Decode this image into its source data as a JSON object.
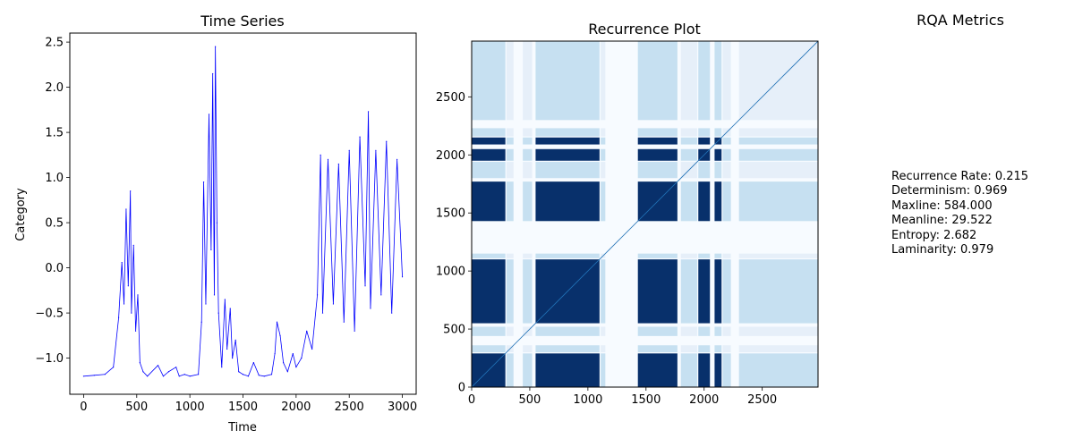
{
  "chart_data": [
    {
      "type": "line",
      "title": "Time Series",
      "xlabel": "Time",
      "ylabel": "Category",
      "xlim": [
        -130,
        3130
      ],
      "ylim": [
        -1.4,
        2.6
      ],
      "xticks": [
        0,
        500,
        1000,
        1500,
        2000,
        2500,
        3000
      ],
      "yticks": [
        -1.0,
        -0.5,
        0.0,
        0.5,
        1.0,
        1.5,
        2.0,
        2.5
      ],
      "color": "#0000ff",
      "series": [
        {
          "x": [
            0,
            100,
            200,
            280,
            330,
            360,
            380,
            400,
            420,
            440,
            450,
            470,
            490,
            510,
            530,
            560,
            600,
            700,
            750,
            800,
            870,
            900,
            950,
            1000,
            1080,
            1110,
            1130,
            1150,
            1180,
            1200,
            1215,
            1230,
            1240,
            1255,
            1270,
            1300,
            1330,
            1350,
            1380,
            1400,
            1430,
            1460,
            1500,
            1550,
            1600,
            1650,
            1700,
            1770,
            1800,
            1820,
            1850,
            1880,
            1920,
            1970,
            2000,
            2050,
            2100,
            2150,
            2200,
            2230,
            2250,
            2300,
            2350,
            2400,
            2450,
            2500,
            2550,
            2600,
            2650,
            2680,
            2700,
            2750,
            2800,
            2850,
            2900,
            2950,
            3000
          ],
          "y": [
            -1.2,
            -1.19,
            -1.18,
            -1.1,
            -0.55,
            0.06,
            -0.4,
            0.65,
            -0.2,
            0.85,
            -0.5,
            0.25,
            -0.7,
            -0.3,
            -1.05,
            -1.15,
            -1.2,
            -1.08,
            -1.2,
            -1.15,
            -1.1,
            -1.2,
            -1.18,
            -1.2,
            -1.18,
            -0.6,
            0.95,
            -0.4,
            1.7,
            0.2,
            2.15,
            -0.3,
            2.45,
            0.5,
            -0.5,
            -1.1,
            -0.35,
            -0.9,
            -0.45,
            -1.0,
            -0.8,
            -1.15,
            -1.18,
            -1.2,
            -1.05,
            -1.19,
            -1.2,
            -1.18,
            -0.95,
            -0.6,
            -0.75,
            -1.05,
            -1.15,
            -0.95,
            -1.1,
            -1.0,
            -0.7,
            -0.9,
            -0.3,
            1.25,
            -0.5,
            1.2,
            -0.4,
            1.15,
            -0.6,
            1.3,
            -0.7,
            1.45,
            -0.2,
            1.73,
            -0.45,
            1.3,
            -0.3,
            1.4,
            -0.5,
            1.2,
            -0.1
          ]
        }
      ]
    },
    {
      "type": "heatmap",
      "title": "Recurrence Plot",
      "xlim": [
        0,
        2980
      ],
      "ylim": [
        0,
        2980
      ],
      "xticks": [
        0,
        500,
        1000,
        1500,
        2000,
        2500
      ],
      "yticks": [
        0,
        500,
        1000,
        1500,
        2000,
        2500
      ],
      "colormap": "Blues",
      "background_color": "#f7fbff",
      "fill_color": "#08306b",
      "recurrent_intervals": [
        [
          0,
          290
        ],
        [
          550,
          1100
        ],
        [
          1430,
          1770
        ],
        [
          1950,
          2050
        ],
        [
          2090,
          2150
        ]
      ],
      "near_intervals": [
        [
          300,
          360
        ],
        [
          440,
          520
        ],
        [
          1110,
          1150
        ],
        [
          1800,
          1940
        ],
        [
          2160,
          2230
        ],
        [
          2300,
          2980
        ]
      ]
    }
  ],
  "metrics": {
    "title": "RQA Metrics",
    "lines": [
      "Recurrence Rate: 0.215",
      "Determinism: 0.969",
      "Maxline: 584.000",
      "Meanline: 29.522",
      "Entropy: 2.682",
      "Laminarity: 0.979"
    ]
  }
}
